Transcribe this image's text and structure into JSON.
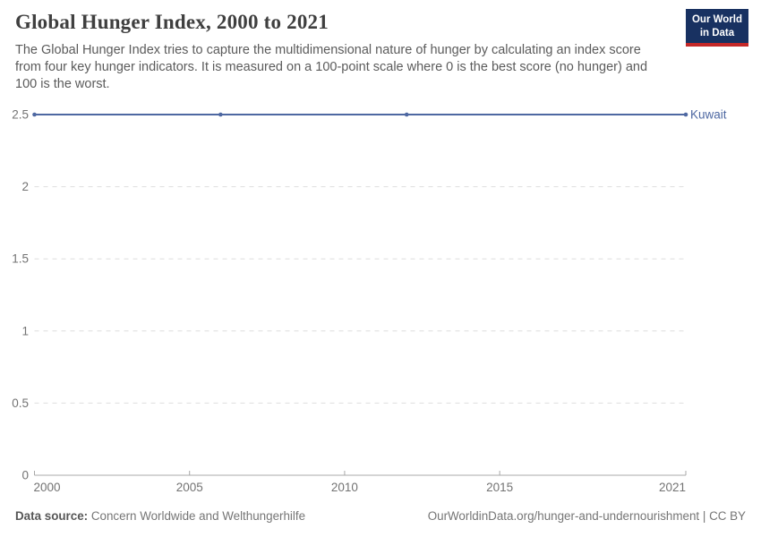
{
  "header": {
    "title": "Global Hunger Index, 2000 to 2021",
    "subtitle": "The Global Hunger Index tries to capture the multidimensional nature of hunger by calculating an index score from four key hunger indicators. It is measured on a 100-point scale where 0 is the best score (no hunger) and 100 is the worst.",
    "logo": {
      "line1": "Our World",
      "line2": "in Data",
      "bg_color": "#183161",
      "bar_color": "#c42828"
    }
  },
  "chart_data": {
    "type": "line",
    "title": "Global Hunger Index, 2000 to 2021",
    "xlabel": "",
    "ylabel": "",
    "xlim": [
      2000,
      2021
    ],
    "ylim": [
      0,
      2.5
    ],
    "x_ticks": [
      2000,
      2005,
      2010,
      2015,
      2021
    ],
    "y_ticks": [
      0,
      0.5,
      1,
      1.5,
      2,
      2.5
    ],
    "grid": "horizontal-dashed",
    "legend_position": "end-of-line-label",
    "series": [
      {
        "name": "Kuwait",
        "x": [
          2000,
          2006,
          2012,
          2021
        ],
        "values": [
          2.5,
          2.5,
          2.5,
          2.5
        ],
        "color": "#4e68a2",
        "markers": true
      }
    ],
    "style": {
      "grid_color": "#dedede",
      "axis_color": "#a8a8a8",
      "tick_label_color": "#737373"
    }
  },
  "footer": {
    "source_label": "Data source:",
    "source_value": "Concern Worldwide and Welthungerhilfe",
    "link_text": "OurWorldinData.org/hunger-and-undernourishment | CC BY"
  }
}
